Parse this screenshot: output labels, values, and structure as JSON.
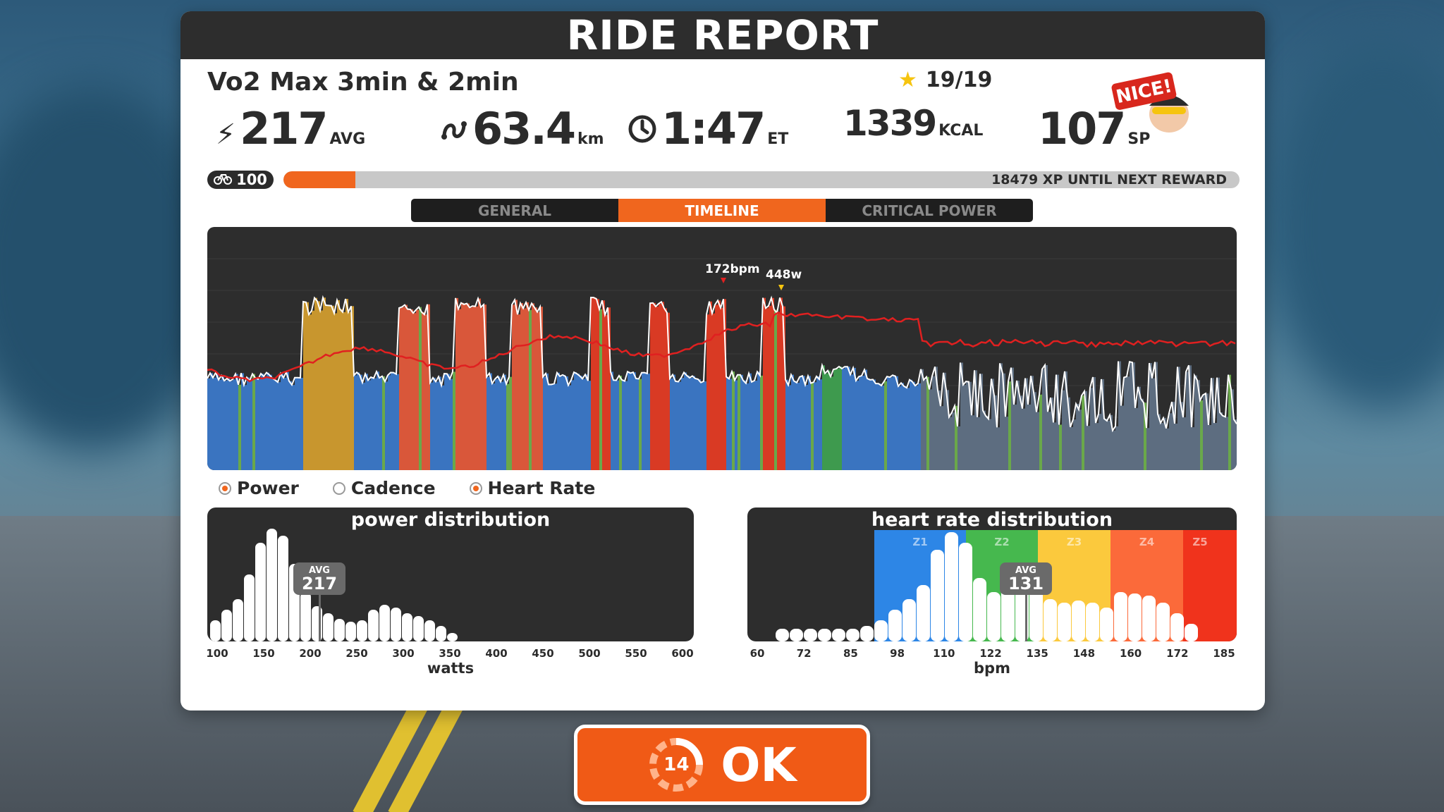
{
  "header": {
    "title": "RIDE REPORT"
  },
  "workout": {
    "title": "Vo2 Max 3min & 2min",
    "stars": "19/19"
  },
  "stats": {
    "power": {
      "value": "217",
      "unit": "AVG"
    },
    "distance": {
      "value": "63.4",
      "unit": "km"
    },
    "time": {
      "value": "1:47",
      "unit": "ET"
    },
    "calories": {
      "value": "1339",
      "unit": "KCAL"
    },
    "sport_points": {
      "value": "107",
      "unit": "SP"
    }
  },
  "badge": {
    "label": "NICE!"
  },
  "progress": {
    "level": "100",
    "xp_text": "18479 XP UNTIL NEXT REWARD",
    "xp_fraction": 0.075
  },
  "tabs": [
    {
      "label": "GENERAL",
      "active": false
    },
    {
      "label": "TIMELINE",
      "active": true
    },
    {
      "label": "CRITICAL POWER",
      "active": false
    }
  ],
  "timeline": {
    "peak_hr_label": "172bpm",
    "peak_power_label": "448w"
  },
  "legend": [
    {
      "label": "Power",
      "checked": true
    },
    {
      "label": "Cadence",
      "checked": false
    },
    {
      "label": "Heart Rate",
      "checked": true
    }
  ],
  "power_distribution": {
    "title": "power distribution",
    "xlabel": "watts",
    "ticks": [
      "100",
      "150",
      "200",
      "250",
      "300",
      "350",
      "400",
      "450",
      "500",
      "550",
      "600"
    ],
    "avg_label": "AVG",
    "avg_value": "217"
  },
  "hr_distribution": {
    "title": "heart rate distribution",
    "xlabel": "bpm",
    "ticks": [
      "60",
      "72",
      "85",
      "98",
      "110",
      "122",
      "135",
      "148",
      "160",
      "172",
      "185"
    ],
    "zones": [
      "Z1",
      "Z2",
      "Z3",
      "Z4",
      "Z5"
    ],
    "avg_label": "AVG",
    "avg_value": "131"
  },
  "ok_button": {
    "label": "OK",
    "countdown": "14"
  },
  "colors": {
    "accent": "#f0661e",
    "panel_dark": "#2d2d2d",
    "zone_z1": "#2d86e6",
    "zone_z2": "#46b84e",
    "zone_z3": "#fbc93d",
    "zone_z4": "#fb6a3a",
    "zone_z5": "#f0331c"
  }
}
